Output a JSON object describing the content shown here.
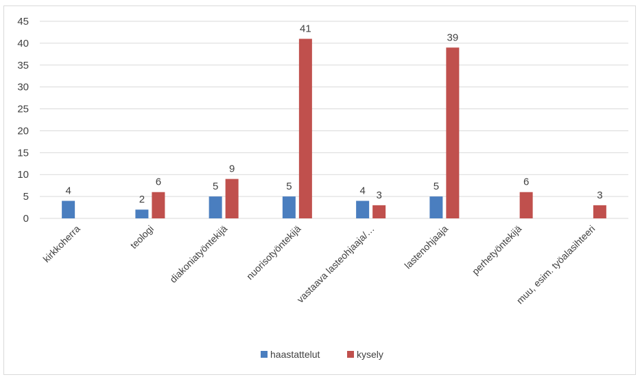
{
  "chart_data": {
    "type": "bar",
    "title": "",
    "xlabel": "",
    "ylabel": "",
    "categories": [
      "kirkkoherra",
      "teologi",
      "diakoniatyöntekijä",
      "nuorisotyöntekijä",
      "vastaava lasteohjaaja/…",
      "lastenohjaaja",
      "perhetyöntekijä",
      "muu, esim. työalasihteeri"
    ],
    "series": [
      {
        "name": "haastattelut",
        "color": "#4a7ebf",
        "values": [
          4,
          2,
          5,
          5,
          4,
          5,
          null,
          null
        ]
      },
      {
        "name": "kysely",
        "color": "#c0504d",
        "values": [
          null,
          6,
          9,
          41,
          3,
          39,
          6,
          3
        ]
      }
    ],
    "ylim": [
      0,
      45
    ],
    "yticks": [
      0,
      5,
      10,
      15,
      20,
      25,
      30,
      35,
      40,
      45
    ],
    "grid": true,
    "legend_position": "bottom",
    "data_labels": true
  }
}
